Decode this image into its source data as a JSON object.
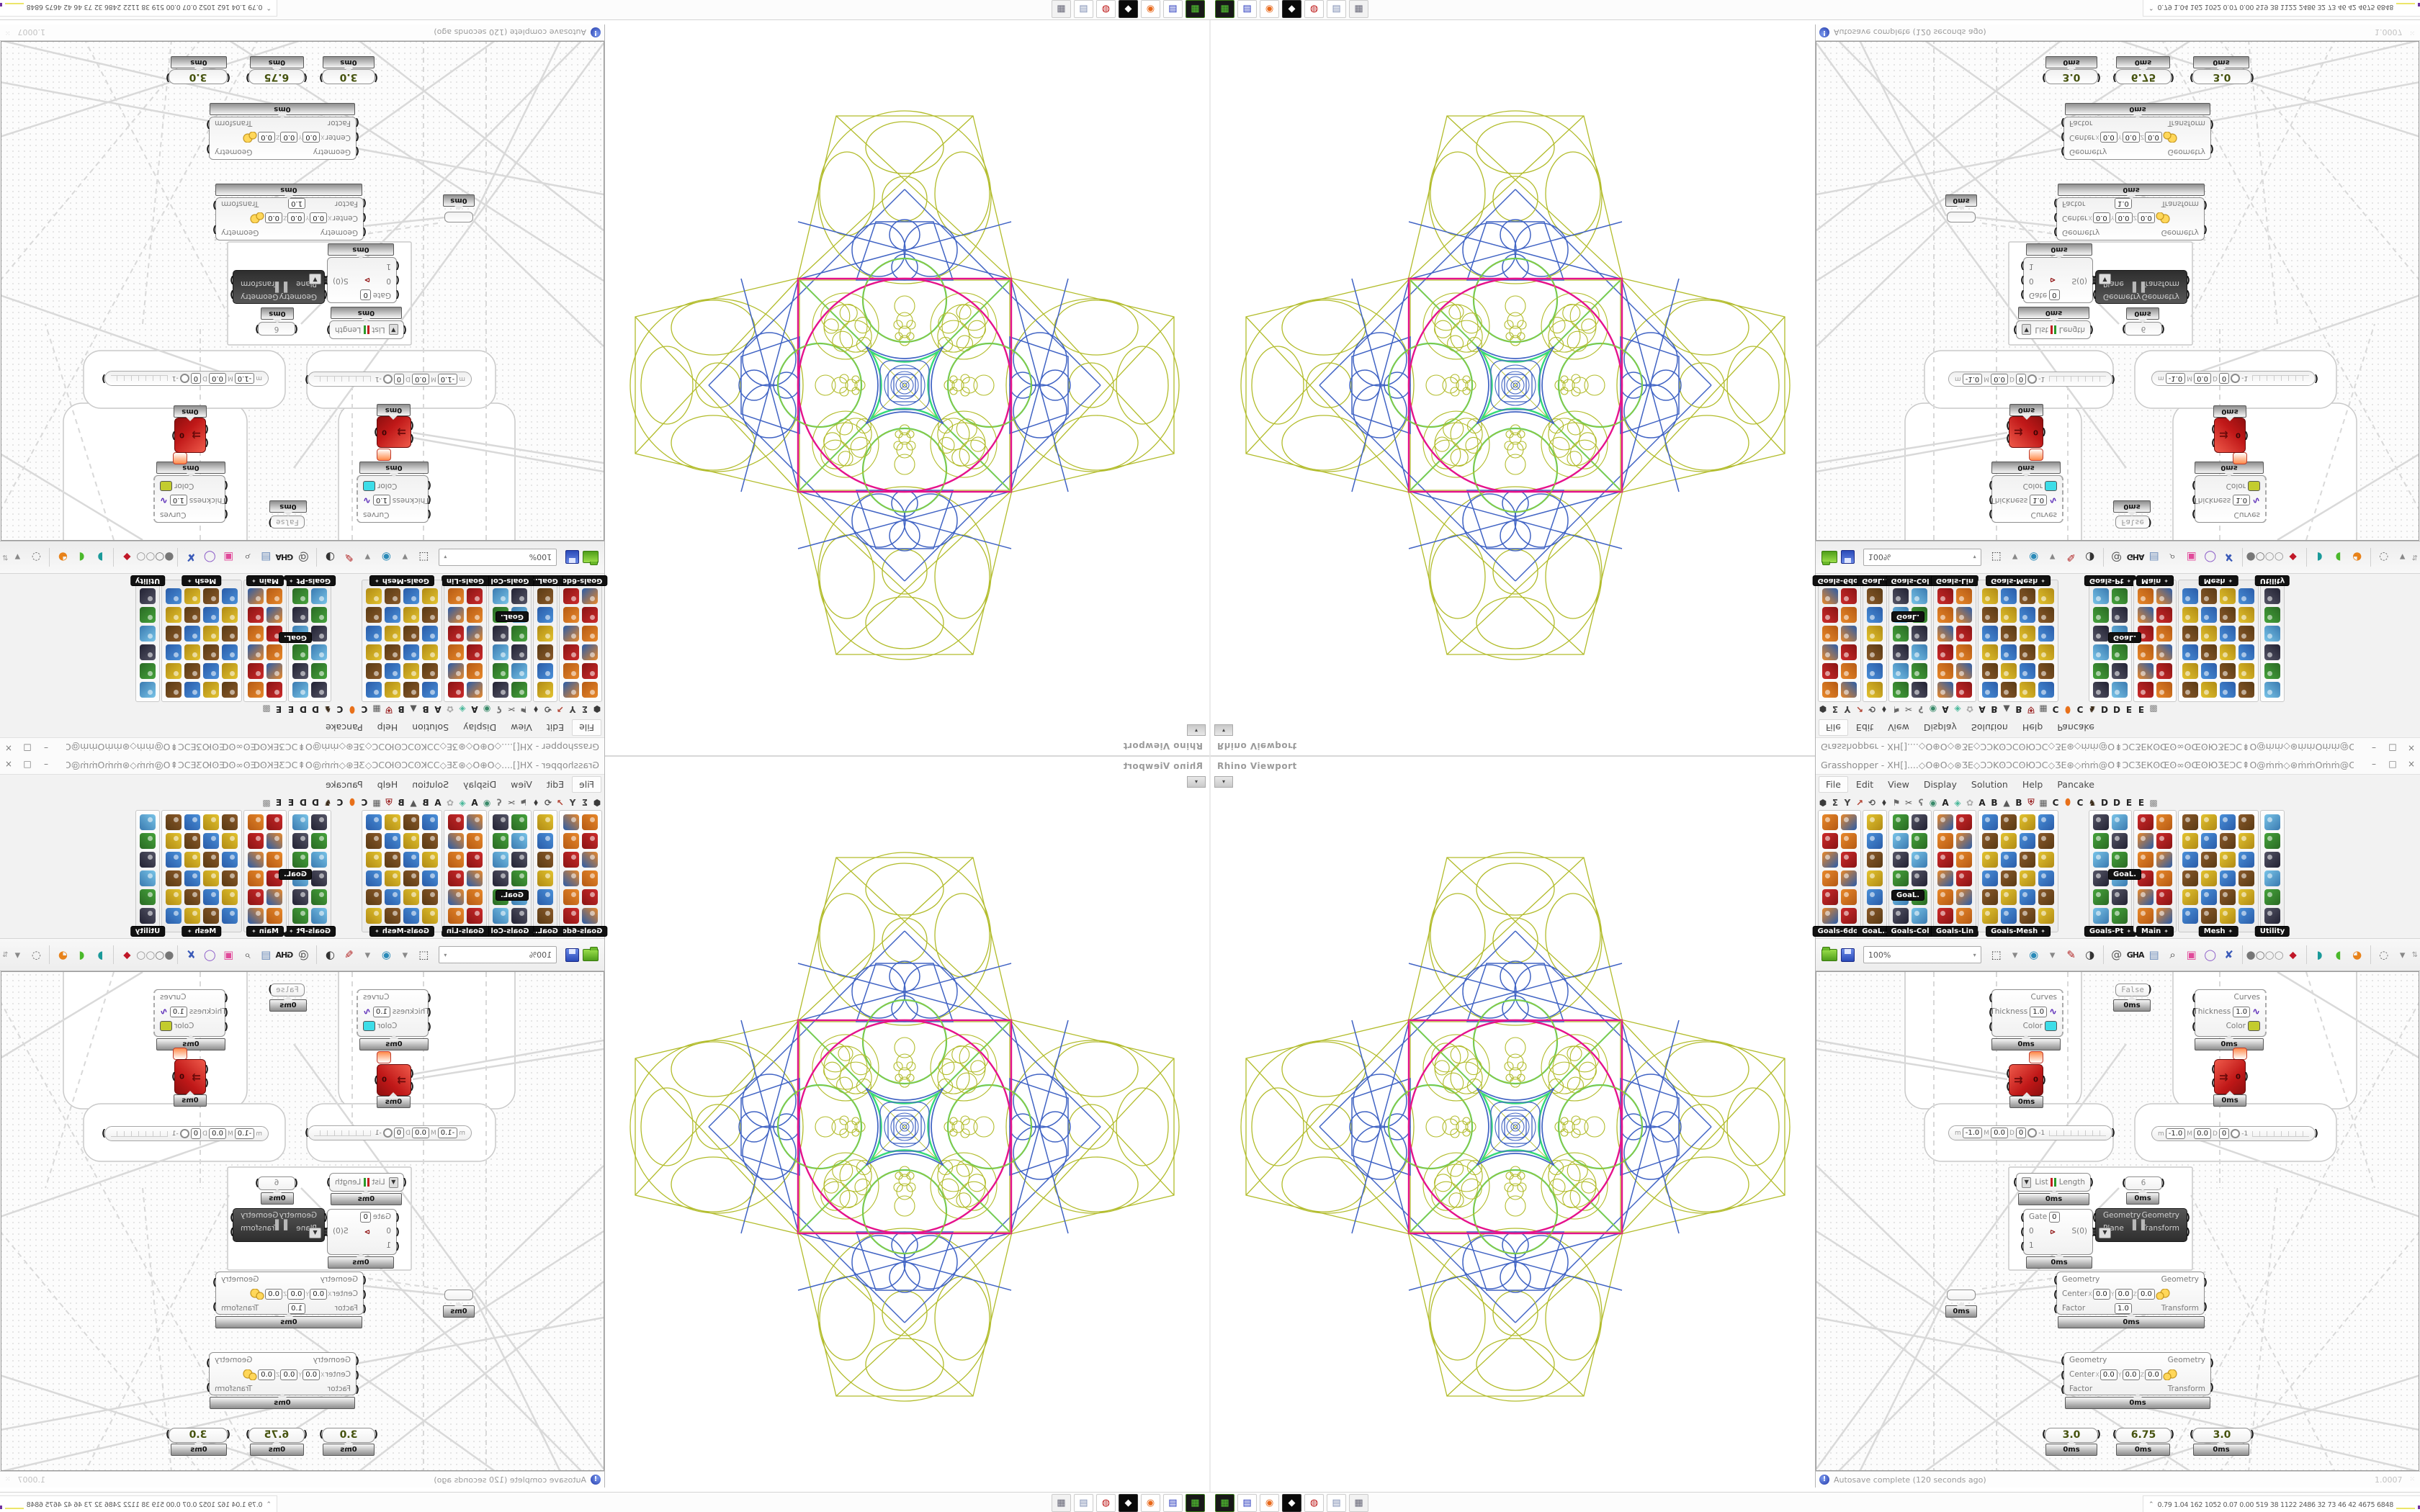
{
  "gh_window": {
    "title": "Grasshopper - XH[]....◇O⊕O◇⊛ƷE◇ƆƆKʘƆCʘЮƆC◇ƷE⊛◇ṁṁ@O⇞ƆCƷEКʘŒʘ∞ʘŒʘЮƷEƆC⇞O@ṁṁ◇⊛ṁṁOṁṁ@O◇O⇞⇞@◇@ṁṁOṁṁ@◇ṁṁ@O⇞ƆCƷEКʘŒʘ∞O...",
    "btn_min": "–",
    "btn_max": "□",
    "btn_close": "×",
    "menu": [
      "File",
      "Edit",
      "View",
      "Display",
      "Solution",
      "Help",
      "Pancake"
    ]
  },
  "tab_icons": [
    {
      "g": "⬢",
      "c": "#3a3a3a"
    },
    {
      "g": "Σ",
      "c": "#444"
    },
    {
      "g": "Y",
      "c": "#444"
    },
    {
      "g": "↗",
      "c": "#b04030"
    },
    {
      "g": "⟲",
      "c": "#555"
    },
    {
      "g": "⬧",
      "c": "#3a3a3a"
    },
    {
      "g": "⚑",
      "c": "#666"
    },
    {
      "g": "✂",
      "c": "#555"
    },
    {
      "g": "ʕ",
      "c": "#777"
    },
    {
      "g": "◉",
      "c": "#3a8a6a"
    },
    {
      "g": "A",
      "c": "#222"
    },
    {
      "g": "◈",
      "c": "#49b89a"
    },
    {
      "g": "✿",
      "c": "#aaa"
    },
    {
      "g": "A",
      "c": "#222"
    },
    {
      "g": "B",
      "c": "#222"
    },
    {
      "g": "▲",
      "c": "#5a5a5a"
    },
    {
      "g": "B",
      "c": "#222"
    },
    {
      "g": "⛨",
      "c": "#a03030"
    },
    {
      "g": "▦",
      "c": "#5a5a5a"
    },
    {
      "g": "C",
      "c": "#222"
    },
    {
      "g": "⬮",
      "c": "#e8701a"
    },
    {
      "g": "C",
      "c": "#222"
    },
    {
      "g": "♞",
      "c": "#3a2a18"
    },
    {
      "g": "D",
      "c": "#222"
    },
    {
      "g": "D",
      "c": "#222"
    },
    {
      "g": "E",
      "c": "#222"
    },
    {
      "g": "E",
      "c": "#222"
    },
    {
      "g": "▩",
      "c": "#888"
    }
  ],
  "palettes": [
    {
      "label": "Goals-6dof",
      "cols": 2,
      "arrow": false
    },
    {
      "label": "GoaL..",
      "cols": 1,
      "arrow": false
    },
    {
      "label": "Goals-Col",
      "cols": 2,
      "arrow": false
    },
    {
      "label": "Goals-Lin",
      "cols": 2,
      "arrow": false
    },
    {
      "label": "Goals-Mesh",
      "cols": 4,
      "arrow": true
    },
    {
      "label": "Goals-Pt",
      "cols": 2,
      "arrow": true,
      "gap_before": 40
    },
    {
      "label": "Main",
      "cols": 2,
      "arrow": true
    },
    {
      "label": "Mesh",
      "cols": 4,
      "arrow": true
    },
    {
      "label": "Utility",
      "cols": 1,
      "arrow": false
    }
  ],
  "floating_labels": {
    "tag1": "GoaL.",
    "tag2": "GoaL."
  },
  "toolbar": {
    "zoom_value": "100%",
    "icons": [
      {
        "name": "zoom-extents-icon",
        "g": "⬚",
        "c": "#333"
      },
      {
        "name": "caret-icon",
        "g": "▾",
        "c": "#888"
      },
      {
        "name": "preview-eye-icon",
        "g": "◉",
        "c": "#2a8ab8"
      },
      {
        "name": "caret-icon",
        "g": "▾",
        "c": "#888"
      },
      {
        "name": "sketch-pen-icon",
        "g": "✎",
        "c": "#b02020"
      },
      {
        "name": "exposure-icon",
        "g": "◑",
        "c": "#333"
      },
      {
        "name": "sep"
      },
      {
        "name": "remote-panel-icon",
        "g": "@",
        "c": "#555"
      },
      {
        "name": "gha-text",
        "g": "GHA",
        "c": "#222"
      },
      {
        "name": "document-icon",
        "g": "▤",
        "c": "#6a8ab8"
      },
      {
        "name": "finder-icon",
        "g": "⌕",
        "c": "#444"
      },
      {
        "name": "package-icon",
        "g": "▣",
        "c": "#e04a9a"
      },
      {
        "name": "balloon-icon",
        "g": "◯",
        "c": "#8a5ac8"
      },
      {
        "name": "ribbons-icon",
        "g": "✘",
        "c": "#3a5ab8"
      },
      {
        "name": "sep"
      },
      {
        "name": "spheres-icon",
        "g": "●○",
        "c": "#777"
      },
      {
        "name": "rings-icon",
        "g": "○○",
        "c": "#999"
      },
      {
        "name": "gem-icon",
        "g": "⬥",
        "c": "#c01828"
      },
      {
        "name": "sep"
      },
      {
        "name": "teal-ribbon-icon",
        "g": "◗",
        "c": "#1a9a9a"
      },
      {
        "name": "green-capsule-icon",
        "g": "◖",
        "c": "#4ab82a"
      },
      {
        "name": "orange-sphere-icon",
        "g": "◕",
        "c": "#e8821a"
      },
      {
        "name": "sep"
      },
      {
        "name": "selection-icon",
        "g": "◌",
        "c": "#666"
      },
      {
        "name": "caret-icon",
        "g": "▾",
        "c": "#888"
      }
    ],
    "scroll_grip": "⇅"
  },
  "canvas": {
    "false_toggle": {
      "value": "False",
      "time": "0ms"
    },
    "preview1": {
      "in_curves": "Curves",
      "in_thickness": "Thickness",
      "thickness_val": "1.0",
      "in_color": "Color",
      "swatch": "#3ddde8",
      "time": "0ms"
    },
    "preview2": {
      "in_curves": "Curves",
      "in_thickness": "Thickness",
      "thickness_val": "1.0",
      "in_color": "Color",
      "swatch": "#c3cc2e",
      "time": "0ms"
    },
    "red1": {
      "value": "0",
      "time": "0ms"
    },
    "red2": {
      "value": "0",
      "time": "0ms"
    },
    "slider_edit": {
      "m": "m",
      "min": "-1.0",
      "M": "M",
      "max": "0.0",
      "d": "D",
      "digits": "0",
      "tick": "-1"
    },
    "list_length": {
      "in_label": "List",
      "out_label": "Length",
      "time": "0ms"
    },
    "stream_filter": {
      "gate_label": "Gate",
      "gate_val": "0",
      "row0": "0",
      "out": "S(0)",
      "row1": "1",
      "time": "0ms"
    },
    "orient": {
      "in1": "Geometry",
      "in2": "Plane",
      "out1": "Geometry",
      "out2": "Transform",
      "pause": "▌▌",
      "dd": "▼"
    },
    "six": {
      "value": "6",
      "time": "0ms"
    },
    "scale1": {
      "in_geo": "Geometry",
      "center": "Center",
      "x": "X",
      "x_val": "0.0",
      "y": "Y",
      "y_val": "0.0",
      "z": "Z",
      "z_val": "0.0",
      "factor": "Factor",
      "factor_val": "1.0",
      "out_geo": "Geometry",
      "out_tr": "Transform",
      "time": "0ms"
    },
    "scale2": {
      "in_geo": "Geometry",
      "center": "Center",
      "x": "X",
      "x_val": "0.0",
      "y": "Y",
      "y_val": "0.0",
      "z": "Z",
      "z_val": "0.0",
      "factor": "Factor",
      "out_geo": "Geometry",
      "out_tr": "Transform",
      "time": "0ms"
    },
    "tiny_node": {
      "time": "0ms"
    },
    "sliders": [
      {
        "value": "3.0",
        "time": "0ms"
      },
      {
        "value": "6.75",
        "time": "0ms"
      },
      {
        "value": "3.0",
        "time": "0ms"
      }
    ]
  },
  "statusbar": {
    "icon": "!",
    "autosave": "Autosave complete (120 seconds ago)",
    "zoom_factor": "1.0007",
    "grip": "⁙"
  },
  "viewport": {
    "label": "Rhino Viewport",
    "drop": "▾",
    "pattern_colors": {
      "olive": "#b2bc2b",
      "blue": "#4164c4",
      "magenta": "#e5128c",
      "green": "#35d977",
      "cyan": "#35c8d8"
    }
  },
  "taskbar_apps": [
    {
      "name": "zip-drive-app",
      "g": "▦",
      "bg": "#181818",
      "fg": "#55cc33",
      "br": "#3a7a1a"
    },
    {
      "name": "floppy64-app",
      "g": "▤",
      "bg": "#ffffff",
      "fg": "#2233bb",
      "br": "#ccc"
    },
    {
      "name": "firefox-app",
      "g": "◉",
      "bg": "#ffffff",
      "fg": "#e8681a",
      "br": "#ccc"
    },
    {
      "name": "dark-graphics-app",
      "g": "◆",
      "bg": "#0a0a0a",
      "fg": "#ffffff",
      "br": "#333"
    },
    {
      "name": "red-emblem-app",
      "g": "◍",
      "bg": "#ffffff",
      "fg": "#bb1111",
      "br": "#ccc"
    },
    {
      "name": "notepad-app",
      "g": "▤",
      "bg": "#ffffff",
      "fg": "#7a8ab0",
      "br": "#ccc"
    },
    {
      "name": "calculator-app",
      "g": "▦",
      "bg": "#f2f2f2",
      "fg": "#667",
      "br": "#ccc"
    }
  ],
  "stats": {
    "chevron": "⌃",
    "values": "0.79  1.04  162  1052 0.07 0.00  519   38   1122 2486  32    73    46    42  4675 6848"
  }
}
